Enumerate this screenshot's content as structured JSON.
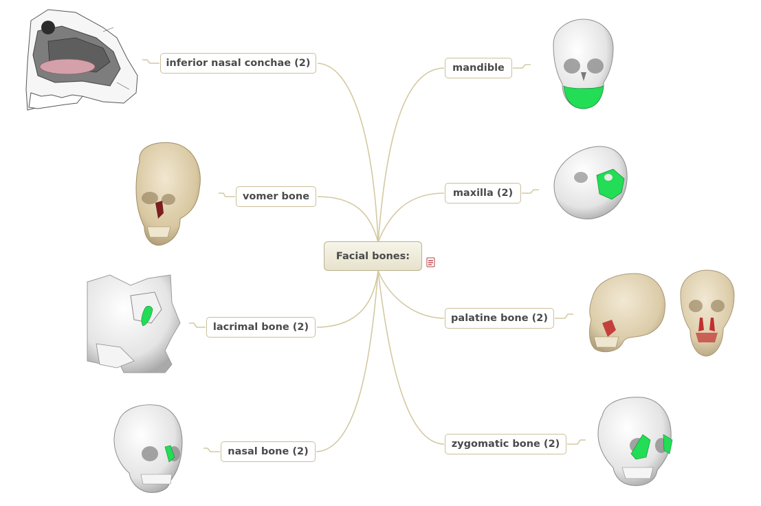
{
  "central": {
    "label": "Facial bones:"
  },
  "branches": {
    "inferior_nasal_conchae": "inferior nasal conchae (2)",
    "vomer": "vomer bone",
    "lacrimal": "lacrimal bone (2)",
    "nasal": "nasal bone (2)",
    "mandible": "mandible",
    "maxilla": "maxilla (2)",
    "palatine": "palatine bone (2)",
    "zygomatic": "zygomatic bone (2)"
  },
  "colors": {
    "connector": "#d3c9a2",
    "node_border": "#c9bf98",
    "highlight_green": "#22dd55",
    "highlight_red": "#c03030",
    "bone_translucent": "#d9c9a4"
  },
  "icons": [
    "attachment-icon"
  ]
}
